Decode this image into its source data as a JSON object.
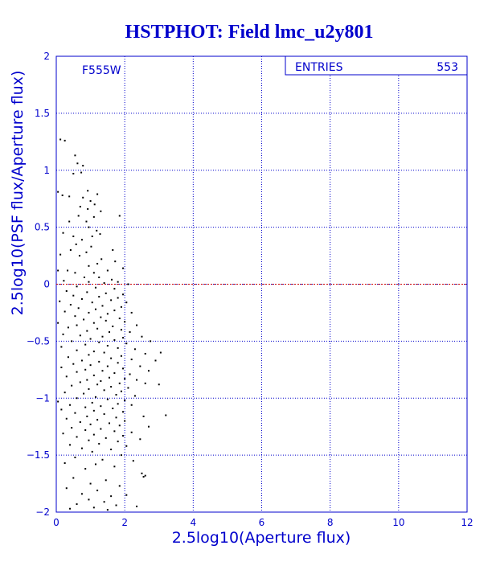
{
  "chart_data": {
    "type": "scatter",
    "title": "HSTPHOT: Field lmc_u2y801",
    "xlabel": "2.5log10(Aperture flux)",
    "ylabel": "2.5log10(PSF flux/Aperture flux)",
    "xlim": [
      0,
      12
    ],
    "ylim": [
      -2,
      2
    ],
    "xticks": [
      "0",
      "2",
      "4",
      "6",
      "8",
      "10",
      "12"
    ],
    "yticks": [
      "-2",
      "-1.5",
      "-1",
      "-0.5",
      "0",
      "0.5",
      "1",
      "1.5",
      "2"
    ],
    "grid": true,
    "reference_line_y": 0,
    "filter_label": "F555W",
    "stats_box": {
      "label": "ENTRIES",
      "value": "553"
    },
    "colors": {
      "frame": "#0000cc",
      "grid": "#0000cc",
      "reference": "#cc0000",
      "points": "#000000"
    },
    "series": [
      {
        "points": [
          [
            0.12,
            1.27
          ],
          [
            0.25,
            1.26
          ],
          [
            0.55,
            1.13
          ],
          [
            0.62,
            1.06
          ],
          [
            0.5,
            0.97
          ],
          [
            0.78,
            1.04
          ],
          [
            0.73,
            0.98
          ],
          [
            0.05,
            0.81
          ],
          [
            0.18,
            0.78
          ],
          [
            0.38,
            0.77
          ],
          [
            0.92,
            0.82
          ],
          [
            0.78,
            0.76
          ],
          [
            1.2,
            0.79
          ],
          [
            1.0,
            0.73
          ],
          [
            1.12,
            0.7
          ],
          [
            0.7,
            0.68
          ],
          [
            0.92,
            0.66
          ],
          [
            1.3,
            0.64
          ],
          [
            0.65,
            0.6
          ],
          [
            1.1,
            0.59
          ],
          [
            1.85,
            0.6
          ],
          [
            0.38,
            0.55
          ],
          [
            0.88,
            0.55
          ],
          [
            0.95,
            0.5
          ],
          [
            1.18,
            0.47
          ],
          [
            0.2,
            0.45
          ],
          [
            0.5,
            0.42
          ],
          [
            1.05,
            0.42
          ],
          [
            1.28,
            0.44
          ],
          [
            0.75,
            0.39
          ],
          [
            0.58,
            0.35
          ],
          [
            1.02,
            0.33
          ],
          [
            0.42,
            0.3
          ],
          [
            0.88,
            0.28
          ],
          [
            1.65,
            0.3
          ],
          [
            0.12,
            0.26
          ],
          [
            0.68,
            0.25
          ],
          [
            1.32,
            0.22
          ],
          [
            1.2,
            0.18
          ],
          [
            0.95,
            0.16
          ],
          [
            1.72,
            0.2
          ],
          [
            0.05,
            0.12
          ],
          [
            0.33,
            0.12
          ],
          [
            0.55,
            0.1
          ],
          [
            1.1,
            0.1
          ],
          [
            1.5,
            0.12
          ],
          [
            1.95,
            0.14
          ],
          [
            0.82,
            0.06
          ],
          [
            1.25,
            0.06
          ],
          [
            1.62,
            0.04
          ],
          [
            0.22,
            0.03
          ],
          [
            0.95,
            0.02
          ],
          [
            1.4,
            0.01
          ],
          [
            1.8,
            0.02
          ],
          [
            2.1,
            0.0
          ],
          [
            0.6,
            -0.02
          ],
          [
            1.15,
            -0.03
          ],
          [
            1.7,
            -0.04
          ],
          [
            0.3,
            -0.06
          ],
          [
            0.9,
            -0.07
          ],
          [
            1.45,
            -0.08
          ],
          [
            1.95,
            -0.09
          ],
          [
            0.5,
            -0.1
          ],
          [
            1.25,
            -0.11
          ],
          [
            1.8,
            -0.12
          ],
          [
            0.75,
            -0.13
          ],
          [
            1.6,
            -0.14
          ],
          [
            0.1,
            -0.15
          ],
          [
            1.05,
            -0.16
          ],
          [
            2.05,
            -0.16
          ],
          [
            0.42,
            -0.18
          ],
          [
            1.35,
            -0.19
          ],
          [
            1.9,
            -0.2
          ],
          [
            0.65,
            -0.21
          ],
          [
            1.15,
            -0.22
          ],
          [
            1.7,
            -0.23
          ],
          [
            0.25,
            -0.24
          ],
          [
            0.95,
            -0.25
          ],
          [
            1.5,
            -0.26
          ],
          [
            2.2,
            -0.25
          ],
          [
            0.55,
            -0.28
          ],
          [
            1.3,
            -0.29
          ],
          [
            1.85,
            -0.3
          ],
          [
            0.8,
            -0.31
          ],
          [
            1.45,
            -0.32
          ],
          [
            2.0,
            -0.33
          ],
          [
            0.05,
            -0.34
          ],
          [
            1.1,
            -0.34
          ],
          [
            0.6,
            -0.36
          ],
          [
            1.65,
            -0.37
          ],
          [
            2.35,
            -0.36
          ],
          [
            0.35,
            -0.38
          ],
          [
            1.2,
            -0.39
          ],
          [
            1.9,
            -0.4
          ],
          [
            0.9,
            -0.41
          ],
          [
            1.55,
            -0.42
          ],
          [
            2.15,
            -0.42
          ],
          [
            0.2,
            -0.44
          ],
          [
            0.7,
            -0.45
          ],
          [
            1.35,
            -0.46
          ],
          [
            1.95,
            -0.47
          ],
          [
            2.5,
            -0.46
          ],
          [
            1.0,
            -0.48
          ],
          [
            1.7,
            -0.49
          ],
          [
            0.45,
            -0.5
          ],
          [
            1.25,
            -0.51
          ],
          [
            2.05,
            -0.52
          ],
          [
            2.75,
            -0.5
          ],
          [
            0.85,
            -0.53
          ],
          [
            1.5,
            -0.54
          ],
          [
            0.15,
            -0.55
          ],
          [
            1.8,
            -0.56
          ],
          [
            2.3,
            -0.57
          ],
          [
            0.6,
            -0.58
          ],
          [
            1.1,
            -0.59
          ],
          [
            1.4,
            -0.6
          ],
          [
            2.6,
            -0.61
          ],
          [
            0.95,
            -0.62
          ],
          [
            1.9,
            -0.63
          ],
          [
            3.05,
            -0.6
          ],
          [
            0.35,
            -0.64
          ],
          [
            1.6,
            -0.65
          ],
          [
            2.2,
            -0.66
          ],
          [
            0.75,
            -0.67
          ],
          [
            1.25,
            -0.68
          ],
          [
            2.9,
            -0.67
          ],
          [
            1.8,
            -0.69
          ],
          [
            0.5,
            -0.7
          ],
          [
            1.0,
            -0.71
          ],
          [
            1.5,
            -0.72
          ],
          [
            2.45,
            -0.72
          ],
          [
            0.15,
            -0.73
          ],
          [
            1.95,
            -0.74
          ],
          [
            0.85,
            -0.75
          ],
          [
            1.35,
            -0.76
          ],
          [
            2.7,
            -0.76
          ],
          [
            0.6,
            -0.77
          ],
          [
            1.7,
            -0.78
          ],
          [
            2.15,
            -0.79
          ],
          [
            1.1,
            -0.8
          ],
          [
            0.3,
            -0.81
          ],
          [
            1.55,
            -0.82
          ],
          [
            2.0,
            -0.83
          ],
          [
            0.9,
            -0.84
          ],
          [
            1.3,
            -0.85
          ],
          [
            2.35,
            -0.84
          ],
          [
            0.7,
            -0.86
          ],
          [
            1.85,
            -0.87
          ],
          [
            1.2,
            -0.88
          ],
          [
            2.6,
            -0.87
          ],
          [
            0.45,
            -0.89
          ],
          [
            1.6,
            -0.9
          ],
          [
            2.1,
            -0.91
          ],
          [
            0.95,
            -0.92
          ],
          [
            3.0,
            -0.88
          ],
          [
            1.4,
            -0.93
          ],
          [
            1.9,
            -0.94
          ],
          [
            0.25,
            -0.95
          ],
          [
            0.8,
            -0.96
          ],
          [
            1.75,
            -0.97
          ],
          [
            2.3,
            -0.98
          ],
          [
            1.15,
            -0.99
          ],
          [
            0.6,
            -1.0
          ],
          [
            1.5,
            -1.01
          ],
          [
            2.0,
            -1.02
          ],
          [
            0.05,
            -1.03
          ],
          [
            1.05,
            -1.04
          ],
          [
            1.8,
            -1.05
          ],
          [
            0.4,
            -1.06
          ],
          [
            1.3,
            -1.07
          ],
          [
            2.2,
            -1.06
          ],
          [
            0.85,
            -1.08
          ],
          [
            1.65,
            -1.09
          ],
          [
            0.15,
            -1.1
          ],
          [
            1.1,
            -1.11
          ],
          [
            1.95,
            -1.12
          ],
          [
            0.55,
            -1.13
          ],
          [
            1.4,
            -1.14
          ],
          [
            3.2,
            -1.15
          ],
          [
            0.9,
            -1.16
          ],
          [
            1.75,
            -1.17
          ],
          [
            2.55,
            -1.16
          ],
          [
            0.3,
            -1.18
          ],
          [
            1.2,
            -1.19
          ],
          [
            2.0,
            -1.2
          ],
          [
            0.7,
            -1.21
          ],
          [
            1.55,
            -1.22
          ],
          [
            1.0,
            -1.23
          ],
          [
            1.85,
            -1.24
          ],
          [
            2.7,
            -1.25
          ],
          [
            0.45,
            -1.26
          ],
          [
            1.3,
            -1.27
          ],
          [
            0.85,
            -1.28
          ],
          [
            1.7,
            -1.29
          ],
          [
            2.2,
            -1.3
          ],
          [
            0.2,
            -1.31
          ],
          [
            1.1,
            -1.32
          ],
          [
            1.95,
            -1.33
          ],
          [
            0.6,
            -1.34
          ],
          [
            1.45,
            -1.35
          ],
          [
            2.45,
            -1.36
          ],
          [
            0.95,
            -1.37
          ],
          [
            1.8,
            -1.38
          ],
          [
            1.25,
            -1.4
          ],
          [
            0.4,
            -1.41
          ],
          [
            2.05,
            -1.42
          ],
          [
            0.75,
            -1.44
          ],
          [
            1.6,
            -1.45
          ],
          [
            1.05,
            -1.47
          ],
          [
            1.9,
            -1.5
          ],
          [
            0.55,
            -1.52
          ],
          [
            1.35,
            -1.54
          ],
          [
            2.25,
            -1.55
          ],
          [
            0.25,
            -1.57
          ],
          [
            1.15,
            -1.58
          ],
          [
            1.7,
            -1.6
          ],
          [
            0.85,
            -1.62
          ],
          [
            2.5,
            -1.66
          ],
          [
            2.6,
            -1.68
          ],
          [
            2.55,
            -1.69
          ],
          [
            0.5,
            -1.7
          ],
          [
            1.45,
            -1.72
          ],
          [
            1.0,
            -1.75
          ],
          [
            1.85,
            -1.77
          ],
          [
            0.3,
            -1.79
          ],
          [
            1.2,
            -1.81
          ],
          [
            0.75,
            -1.84
          ],
          [
            1.6,
            -1.86
          ],
          [
            2.05,
            -1.85
          ],
          [
            0.95,
            -1.89
          ],
          [
            1.4,
            -1.91
          ],
          [
            0.6,
            -1.93
          ],
          [
            1.75,
            -1.94
          ],
          [
            1.1,
            -1.96
          ],
          [
            2.35,
            -1.95
          ],
          [
            0.4,
            -1.97
          ],
          [
            1.5,
            -1.98
          ]
        ]
      }
    ]
  }
}
